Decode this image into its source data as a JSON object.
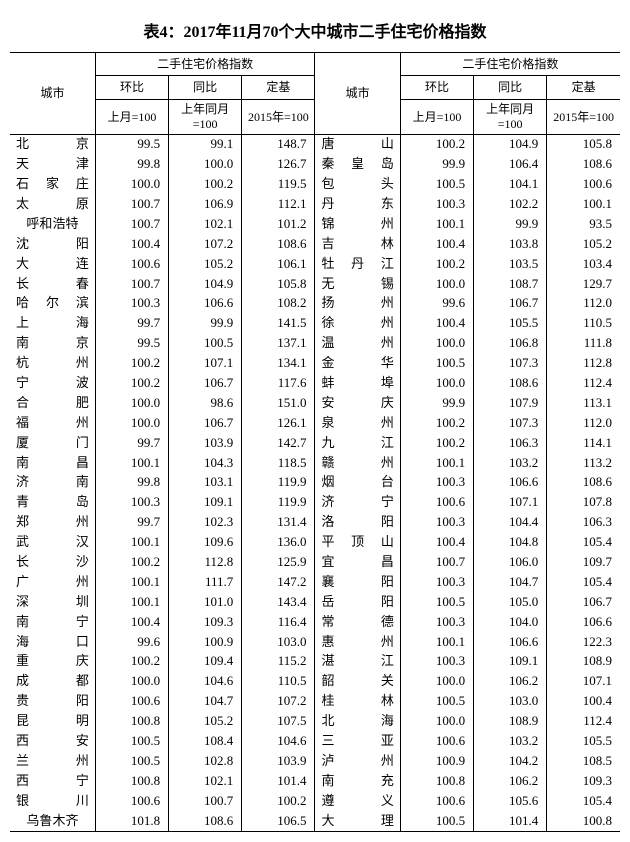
{
  "title": "表4：2017年11月70个大中城市二手住宅价格指数",
  "header": {
    "city": "城市",
    "group": "二手住宅价格指数",
    "mom": "环比",
    "yoy": "同比",
    "base": "定基",
    "mom_sub": "上月=100",
    "yoy_sub": "上年同月=100",
    "base_sub": "2015年=100"
  },
  "left": [
    {
      "city": "北京",
      "mom": "99.5",
      "yoy": "99.1",
      "base": "148.7"
    },
    {
      "city": "天津",
      "mom": "99.8",
      "yoy": "100.0",
      "base": "126.7"
    },
    {
      "city": "石家庄",
      "mom": "100.0",
      "yoy": "100.2",
      "base": "119.5"
    },
    {
      "city": "太原",
      "mom": "100.7",
      "yoy": "106.9",
      "base": "112.1"
    },
    {
      "city": "呼和浩特",
      "mom": "100.7",
      "yoy": "102.1",
      "base": "101.2"
    },
    {
      "city": "沈阳",
      "mom": "100.4",
      "yoy": "107.2",
      "base": "108.6"
    },
    {
      "city": "大连",
      "mom": "100.6",
      "yoy": "105.2",
      "base": "106.1"
    },
    {
      "city": "长春",
      "mom": "100.7",
      "yoy": "104.9",
      "base": "105.8"
    },
    {
      "city": "哈尔滨",
      "mom": "100.3",
      "yoy": "106.6",
      "base": "108.2"
    },
    {
      "city": "上海",
      "mom": "99.7",
      "yoy": "99.9",
      "base": "141.5"
    },
    {
      "city": "南京",
      "mom": "99.5",
      "yoy": "100.5",
      "base": "137.1"
    },
    {
      "city": "杭州",
      "mom": "100.2",
      "yoy": "107.1",
      "base": "134.1"
    },
    {
      "city": "宁波",
      "mom": "100.2",
      "yoy": "106.7",
      "base": "117.6"
    },
    {
      "city": "合肥",
      "mom": "100.0",
      "yoy": "98.6",
      "base": "151.0"
    },
    {
      "city": "福州",
      "mom": "100.0",
      "yoy": "106.7",
      "base": "126.1"
    },
    {
      "city": "厦门",
      "mom": "99.7",
      "yoy": "103.9",
      "base": "142.7"
    },
    {
      "city": "南昌",
      "mom": "100.1",
      "yoy": "104.3",
      "base": "118.5"
    },
    {
      "city": "济南",
      "mom": "99.8",
      "yoy": "103.1",
      "base": "119.9"
    },
    {
      "city": "青岛",
      "mom": "100.3",
      "yoy": "109.1",
      "base": "119.9"
    },
    {
      "city": "郑州",
      "mom": "99.7",
      "yoy": "102.3",
      "base": "131.4"
    },
    {
      "city": "武汉",
      "mom": "100.1",
      "yoy": "109.6",
      "base": "136.0"
    },
    {
      "city": "长沙",
      "mom": "100.2",
      "yoy": "112.8",
      "base": "125.9"
    },
    {
      "city": "广州",
      "mom": "100.1",
      "yoy": "111.7",
      "base": "147.2"
    },
    {
      "city": "深圳",
      "mom": "100.1",
      "yoy": "101.0",
      "base": "143.4"
    },
    {
      "city": "南宁",
      "mom": "100.4",
      "yoy": "109.3",
      "base": "116.4"
    },
    {
      "city": "海口",
      "mom": "99.6",
      "yoy": "100.9",
      "base": "103.0"
    },
    {
      "city": "重庆",
      "mom": "100.2",
      "yoy": "109.4",
      "base": "115.2"
    },
    {
      "city": "成都",
      "mom": "100.0",
      "yoy": "104.6",
      "base": "110.5"
    },
    {
      "city": "贵阳",
      "mom": "100.6",
      "yoy": "104.7",
      "base": "107.2"
    },
    {
      "city": "昆明",
      "mom": "100.8",
      "yoy": "105.2",
      "base": "107.5"
    },
    {
      "city": "西安",
      "mom": "100.5",
      "yoy": "108.4",
      "base": "104.6"
    },
    {
      "city": "兰州",
      "mom": "100.5",
      "yoy": "102.8",
      "base": "103.9"
    },
    {
      "city": "西宁",
      "mom": "100.8",
      "yoy": "102.1",
      "base": "101.4"
    },
    {
      "city": "银川",
      "mom": "100.6",
      "yoy": "100.7",
      "base": "100.2"
    },
    {
      "city": "乌鲁木齐",
      "mom": "101.8",
      "yoy": "108.6",
      "base": "106.5"
    }
  ],
  "right": [
    {
      "city": "唐山",
      "mom": "100.2",
      "yoy": "104.9",
      "base": "105.8"
    },
    {
      "city": "秦皇岛",
      "mom": "99.9",
      "yoy": "106.4",
      "base": "108.6"
    },
    {
      "city": "包头",
      "mom": "100.5",
      "yoy": "104.1",
      "base": "100.6"
    },
    {
      "city": "丹东",
      "mom": "100.3",
      "yoy": "102.2",
      "base": "100.1"
    },
    {
      "city": "锦州",
      "mom": "100.1",
      "yoy": "99.9",
      "base": "93.5"
    },
    {
      "city": "吉林",
      "mom": "100.4",
      "yoy": "103.8",
      "base": "105.2"
    },
    {
      "city": "牡丹江",
      "mom": "100.2",
      "yoy": "103.5",
      "base": "103.4"
    },
    {
      "city": "无锡",
      "mom": "100.0",
      "yoy": "108.7",
      "base": "129.7"
    },
    {
      "city": "扬州",
      "mom": "99.6",
      "yoy": "106.7",
      "base": "112.0"
    },
    {
      "city": "徐州",
      "mom": "100.4",
      "yoy": "105.5",
      "base": "110.5"
    },
    {
      "city": "温州",
      "mom": "100.0",
      "yoy": "106.8",
      "base": "111.8"
    },
    {
      "city": "金华",
      "mom": "100.5",
      "yoy": "107.3",
      "base": "112.8"
    },
    {
      "city": "蚌埠",
      "mom": "100.0",
      "yoy": "108.6",
      "base": "112.4"
    },
    {
      "city": "安庆",
      "mom": "99.9",
      "yoy": "107.9",
      "base": "113.1"
    },
    {
      "city": "泉州",
      "mom": "100.2",
      "yoy": "107.3",
      "base": "112.0"
    },
    {
      "city": "九江",
      "mom": "100.2",
      "yoy": "106.3",
      "base": "114.1"
    },
    {
      "city": "赣州",
      "mom": "100.1",
      "yoy": "103.2",
      "base": "113.2"
    },
    {
      "city": "烟台",
      "mom": "100.3",
      "yoy": "106.6",
      "base": "108.6"
    },
    {
      "city": "济宁",
      "mom": "100.6",
      "yoy": "107.1",
      "base": "107.8"
    },
    {
      "city": "洛阳",
      "mom": "100.3",
      "yoy": "104.4",
      "base": "106.3"
    },
    {
      "city": "平顶山",
      "mom": "100.4",
      "yoy": "104.8",
      "base": "105.4"
    },
    {
      "city": "宜昌",
      "mom": "100.7",
      "yoy": "106.0",
      "base": "109.7"
    },
    {
      "city": "襄阳",
      "mom": "100.3",
      "yoy": "104.7",
      "base": "105.4"
    },
    {
      "city": "岳阳",
      "mom": "100.5",
      "yoy": "105.0",
      "base": "106.7"
    },
    {
      "city": "常德",
      "mom": "100.3",
      "yoy": "104.0",
      "base": "106.6"
    },
    {
      "city": "惠州",
      "mom": "100.1",
      "yoy": "106.6",
      "base": "122.3"
    },
    {
      "city": "湛江",
      "mom": "100.3",
      "yoy": "109.1",
      "base": "108.9"
    },
    {
      "city": "韶关",
      "mom": "100.0",
      "yoy": "106.2",
      "base": "107.1"
    },
    {
      "city": "桂林",
      "mom": "100.5",
      "yoy": "103.0",
      "base": "100.4"
    },
    {
      "city": "北海",
      "mom": "100.0",
      "yoy": "108.9",
      "base": "112.4"
    },
    {
      "city": "三亚",
      "mom": "100.6",
      "yoy": "103.2",
      "base": "105.5"
    },
    {
      "city": "泸州",
      "mom": "100.9",
      "yoy": "104.2",
      "base": "108.5"
    },
    {
      "city": "南充",
      "mom": "100.8",
      "yoy": "106.2",
      "base": "109.3"
    },
    {
      "city": "遵义",
      "mom": "100.6",
      "yoy": "105.6",
      "base": "105.4"
    },
    {
      "city": "大理",
      "mom": "100.5",
      "yoy": "101.4",
      "base": "100.8"
    }
  ],
  "style": {
    "bg": "#ffffff",
    "border": "#000000",
    "font_body": 13,
    "font_header": 12,
    "font_title": 16
  }
}
